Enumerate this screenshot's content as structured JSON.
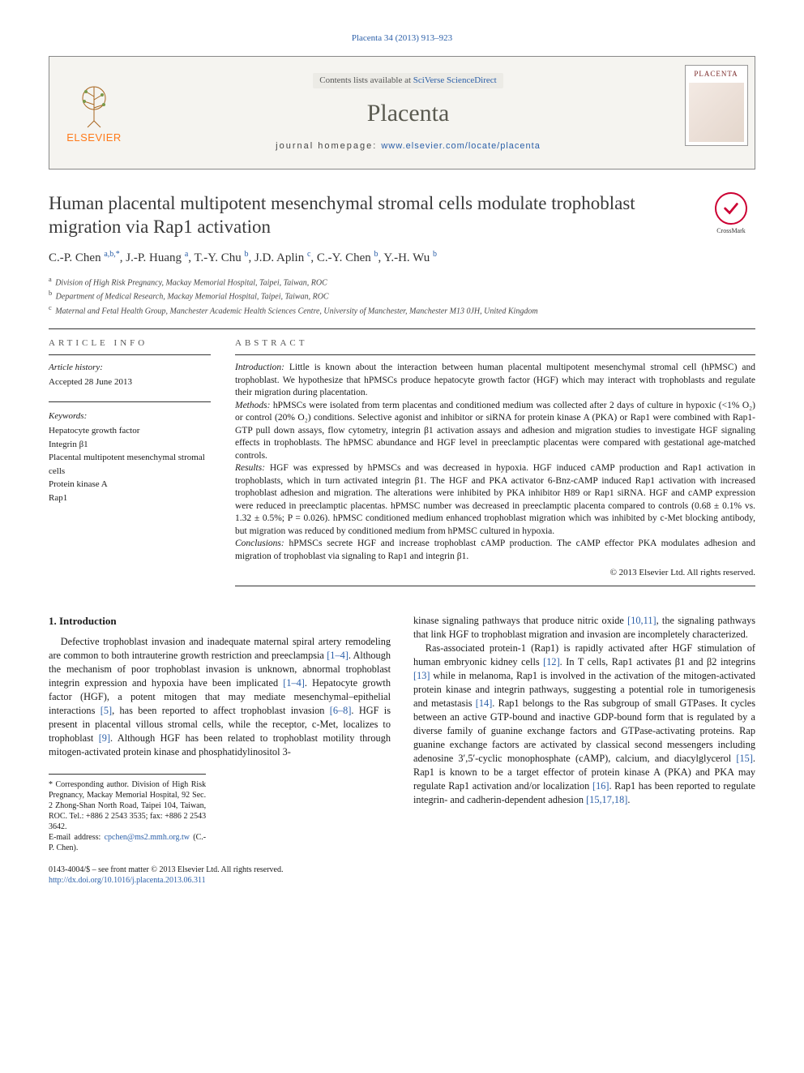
{
  "journal": {
    "running_head_prefix": "Placenta 34 (2013) 913–923",
    "contents_prefix": "Contents lists available at ",
    "contents_link": "SciVerse ScienceDirect",
    "name": "Placenta",
    "homepage_label": "journal homepage: ",
    "homepage_url": "www.elsevier.com/locate/placenta",
    "publisher_logo_text": "ELSEVIER",
    "cover_title": "PLACENTA"
  },
  "crossmark": {
    "label": "CrossMark"
  },
  "article": {
    "title": "Human placental multipotent mesenchymal stromal cells modulate trophoblast migration via Rap1 activation",
    "authors_html": "C.-P. Chen <sup>a,b,*</sup>, J.-P. Huang <sup>a</sup>, T.-Y. Chu <sup>b</sup>, J.D. Aplin <sup>c</sup>, C.-Y. Chen <sup>b</sup>, Y.-H. Wu <sup>b</sup>",
    "affiliations": {
      "a": "Division of High Risk Pregnancy, Mackay Memorial Hospital, Taipei, Taiwan, ROC",
      "b": "Department of Medical Research, Mackay Memorial Hospital, Taipei, Taiwan, ROC",
      "c": "Maternal and Fetal Health Group, Manchester Academic Health Sciences Centre, University of Manchester, Manchester M13 0JH, United Kingdom"
    }
  },
  "info": {
    "section_label": "ARTICLE INFO",
    "history_head": "Article history:",
    "history_value": "Accepted 28 June 2013",
    "keywords_head": "Keywords:",
    "keywords": [
      "Hepatocyte growth factor",
      "Integrin β1",
      "Placental multipotent mesenchymal stromal cells",
      "Protein kinase A",
      "Rap1"
    ]
  },
  "abstract": {
    "section_label": "ABSTRACT",
    "segments": {
      "intro_label": "Introduction:",
      "intro_text": " Little is known about the interaction between human placental multipotent mesenchymal stromal cell (hPMSC) and trophoblast. We hypothesize that hPMSCs produce hepatocyte growth factor (HGF) which may interact with trophoblasts and regulate their migration during placentation.",
      "methods_label": "Methods:",
      "methods_text": " hPMSCs were isolated from term placentas and conditioned medium was collected after 2 days of culture in hypoxic (<1% O₂) or control (20% O₂) conditions. Selective agonist and inhibitor or siRNA for protein kinase A (PKA) or Rap1 were combined with Rap1-GTP pull down assays, flow cytometry, integrin β1 activation assays and adhesion and migration studies to investigate HGF signaling effects in trophoblasts. The hPMSC abundance and HGF level in preeclamptic placentas were compared with gestational age-matched controls.",
      "results_label": "Results:",
      "results_text": " HGF was expressed by hPMSCs and was decreased in hypoxia. HGF induced cAMP production and Rap1 activation in trophoblasts, which in turn activated integrin β1. The HGF and PKA activator 6-Bnz-cAMP induced Rap1 activation with increased trophoblast adhesion and migration. The alterations were inhibited by PKA inhibitor H89 or Rap1 siRNA. HGF and cAMP expression were reduced in preeclamptic placentas. hPMSC number was decreased in preeclamptic placenta compared to controls (0.68 ± 0.1% vs. 1.32 ± 0.5%; P = 0.026). hPMSC conditioned medium enhanced trophoblast migration which was inhibited by c-Met blocking antibody, but migration was reduced by conditioned medium from hPMSC cultured in hypoxia.",
      "concl_label": "Conclusions:",
      "concl_text": " hPMSCs secrete HGF and increase trophoblast cAMP production. The cAMP effector PKA modulates adhesion and migration of trophoblast via signaling to Rap1 and integrin β1."
    },
    "copyright": "© 2013 Elsevier Ltd. All rights reserved."
  },
  "body": {
    "heading1": "1. Introduction",
    "p1": "Defective trophoblast invasion and inadequate maternal spiral artery remodeling are common to both intrauterine growth restriction and preeclampsia [1–4]. Although the mechanism of poor trophoblast invasion is unknown, abnormal trophoblast integrin expression and hypoxia have been implicated [1–4]. Hepatocyte growth factor (HGF), a potent mitogen that may mediate mesenchymal–epithelial interactions [5], has been reported to affect trophoblast invasion [6–8]. HGF is present in placental villous stromal cells, while the receptor, c-Met, localizes to trophoblast [9]. Although HGF has been related to trophoblast motility through mitogen-activated protein kinase and phosphatidylinositol 3-",
    "p2": "kinase signaling pathways that produce nitric oxide [10,11], the signaling pathways that link HGF to trophoblast migration and invasion are incompletely characterized.",
    "p3": "Ras-associated protein-1 (Rap1) is rapidly activated after HGF stimulation of human embryonic kidney cells [12]. In T cells, Rap1 activates β1 and β2 integrins [13] while in melanoma, Rap1 is involved in the activation of the mitogen-activated protein kinase and integrin pathways, suggesting a potential role in tumorigenesis and metastasis [14]. Rap1 belongs to the Ras subgroup of small GTPases. It cycles between an active GTP-bound and inactive GDP-bound form that is regulated by a diverse family of guanine exchange factors and GTPase-activating proteins. Rap guanine exchange factors are activated by classical second messengers including adenosine 3′,5′-cyclic monophosphate (cAMP), calcium, and diacylglycerol [15]. Rap1 is known to be a target effector of protein kinase A (PKA) and PKA may regulate Rap1 activation and/or localization [16]. Rap1 has been reported to regulate integrin- and cadherin-dependent adhesion [15,17,18]."
  },
  "refs": {
    "r1_4a": "[1–4]",
    "r1_4b": "[1–4]",
    "r5": "[5]",
    "r6_8": "[6–8]",
    "r9": "[9]",
    "r10_11": "[10,11]",
    "r12": "[12]",
    "r13": "[13]",
    "r14": "[14]",
    "r15a": "[15]",
    "r16": "[16]",
    "r15_17_18": "[15,17,18]"
  },
  "footnote": {
    "corr_label": "* Corresponding author. Division of High Risk Pregnancy, Mackay Memorial Hospital, 92 Sec. 2 Zhong-Shan North Road, Taipei 104, Taiwan, ROC. Tel.: +886 2 2543 3535; fax: +886 2 2543 3642.",
    "email_label": "E-mail address: ",
    "email": "cpchen@ms2.mmh.org.tw",
    "email_suffix": " (C.-P. Chen)."
  },
  "bottom": {
    "issn_line": "0143-4004/$ – see front matter © 2013 Elsevier Ltd. All rights reserved.",
    "doi": "http://dx.doi.org/10.1016/j.placenta.2013.06.311"
  },
  "colors": {
    "link": "#2b5fa8",
    "elsevier_orange": "#ff7a1a",
    "header_bg": "#f5f4f0",
    "rule": "#333333"
  }
}
